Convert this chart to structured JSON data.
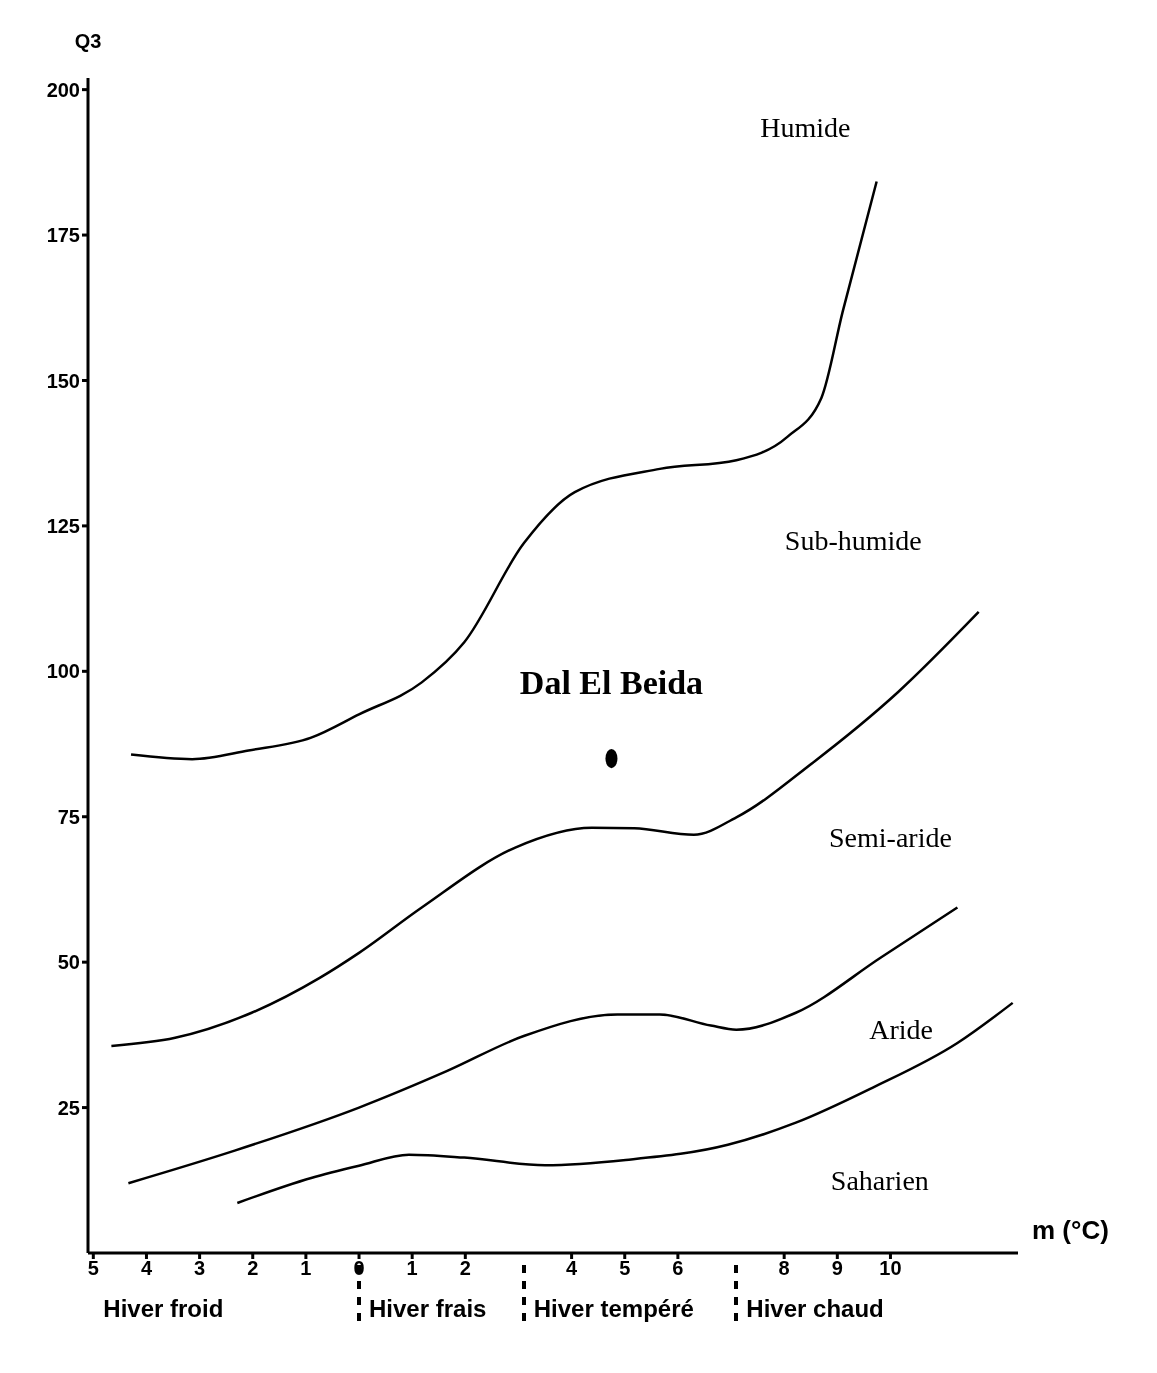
{
  "chart_data": {
    "type": "line",
    "ylabel": "Q3",
    "xlabel": "m (°C)",
    "xlim": [
      -5.1,
      12.4
    ],
    "ylim": [
      0,
      202
    ],
    "xticks": [
      {
        "value": -5,
        "label": "5"
      },
      {
        "value": -4,
        "label": "4"
      },
      {
        "value": -3,
        "label": "3"
      },
      {
        "value": -2,
        "label": "2"
      },
      {
        "value": -1,
        "label": "1"
      },
      0,
      1,
      2,
      4,
      5,
      6,
      8,
      9,
      10
    ],
    "yticks": [
      25,
      50,
      75,
      100,
      125,
      150,
      175,
      200
    ],
    "series": [
      {
        "color": "#000000",
        "x": [
          -4.29,
          -3.14,
          -2.08,
          -0.9,
          0,
          1.18,
          1.98,
          3.1,
          4.06,
          5.66,
          7.1,
          8.06,
          8.7,
          9.1,
          9.74
        ],
        "values": [
          85.7,
          84.9,
          86.4,
          88.6,
          92.6,
          98.1,
          105,
          122,
          130.8,
          134.8,
          136.3,
          140.3,
          147,
          161.8,
          184.2
        ]
      },
      {
        "color": "#000000",
        "x": [
          -4.66,
          -3.46,
          -2.02,
          -0.74,
          0,
          1.18,
          2.94,
          4.38,
          5.18,
          6.3,
          7.1,
          8.54,
          10.14,
          11.66
        ],
        "values": [
          35.6,
          37,
          41.3,
          47.3,
          51.6,
          59.4,
          69.7,
          73.1,
          73,
          71.9,
          74.9,
          84.3,
          96.4,
          110.2
        ]
      },
      {
        "color": "#000000",
        "x": [
          -4.34,
          -2.34,
          0,
          1.66,
          3.1,
          4.86,
          5.66,
          6.62,
          7.1,
          8.22,
          9.82,
          11.26
        ],
        "values": [
          12,
          17.6,
          25,
          31.3,
          37.3,
          41,
          41,
          39.1,
          38.4,
          41.3,
          50.8,
          59.4
        ]
      },
      {
        "color": "#000000",
        "x": [
          -2.29,
          -0.9,
          0,
          0.94,
          1.98,
          3.5,
          5.02,
          6.94,
          8.22,
          9.66,
          11.26,
          12.3
        ],
        "values": [
          8.6,
          12.9,
          15,
          16.9,
          16.4,
          15.1,
          16,
          18.6,
          22.4,
          28.4,
          36.1,
          43
        ]
      },
      {
        "type": "scatter",
        "name": "Dal El Beida",
        "marker": "circle",
        "color": "#000000",
        "x": [
          4.75
        ],
        "values": [
          85
        ]
      }
    ],
    "annotations": [
      "Humide",
      "Sub-humide",
      "Semi-aride",
      "Aride",
      "Saharien",
      "Hiver froid",
      "Hiver frais",
      "Hiver tempéré",
      "Hiver chaud"
    ]
  }
}
